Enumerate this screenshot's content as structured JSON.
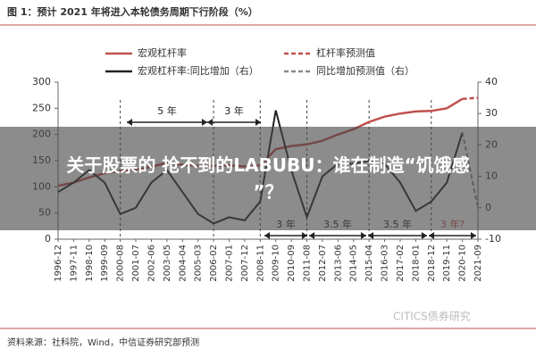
{
  "chart_data": {
    "type": "line",
    "title": "图 1：预计 2021 年将进入本轮债务周期下行阶段（%）",
    "categories": [
      "1996-12",
      "1997-11",
      "1998-10",
      "1999-09",
      "2000-08",
      "2001-07",
      "2002-06",
      "2003-05",
      "2004-04",
      "2005-03",
      "2006-02",
      "2007-01",
      "2007-12",
      "2008-11",
      "2009-10",
      "2010-09",
      "2011-08",
      "2012-07",
      "2013-06",
      "2014-05",
      "2015-04",
      "2016-03",
      "2017-02",
      "2018-01",
      "2018-12",
      "2019-11",
      "2020-10",
      "2021-09"
    ],
    "series": [
      {
        "name": "宏观杠杆率",
        "color": "#c0504d",
        "dash": false,
        "values": [
          102,
          108,
          118,
          126,
          130,
          133,
          138,
          146,
          142,
          140,
          140,
          141,
          139,
          141,
          172,
          178,
          181,
          188,
          200,
          210,
          224,
          234,
          240,
          244,
          245,
          250,
          268,
          null
        ]
      },
      {
        "name": "杠杆率预测值",
        "color": "#c0504d",
        "dash": true,
        "values": [
          null,
          null,
          null,
          null,
          null,
          null,
          null,
          null,
          null,
          null,
          null,
          null,
          null,
          null,
          null,
          null,
          null,
          null,
          null,
          null,
          null,
          null,
          null,
          null,
          null,
          null,
          268,
          270
        ]
      },
      {
        "name": "宏观杠杆率:同比增加（右）",
        "color": "#222222",
        "dash": false,
        "axis": "y2",
        "values": [
          5,
          8,
          12,
          8,
          -2,
          0,
          8,
          12,
          5,
          -2,
          -5,
          -3,
          -4,
          2,
          31,
          12,
          -3,
          10,
          14,
          14,
          15,
          14,
          8,
          -1,
          2,
          8,
          24,
          null
        ]
      },
      {
        "name": "同比增加预测值（右）",
        "color": "#888888",
        "dash": true,
        "axis": "y2",
        "values": [
          null,
          null,
          null,
          null,
          null,
          null,
          null,
          null,
          null,
          null,
          null,
          null,
          null,
          null,
          null,
          null,
          null,
          null,
          null,
          null,
          null,
          null,
          null,
          null,
          null,
          null,
          24,
          0
        ]
      }
    ],
    "ylim": [
      0,
      300
    ],
    "yticks": [
      0,
      50,
      100,
      150,
      200,
      250,
      300
    ],
    "y2lim": [
      -10,
      40
    ],
    "y2ticks": [
      -10,
      0,
      10,
      20,
      30,
      40
    ],
    "annotations": [
      "5 年",
      "3 年",
      "3 年",
      "3.5 年",
      "3.5 年",
      "3 年?"
    ],
    "source": "资料来源：社科院，Wind，中信证券研究部预测",
    "watermark": "CITICS债券研究"
  },
  "overlay": {
    "lines": [
      "关于股票的 抢不到的LABUBU：谁在制造“饥饿感",
      "”？"
    ]
  }
}
